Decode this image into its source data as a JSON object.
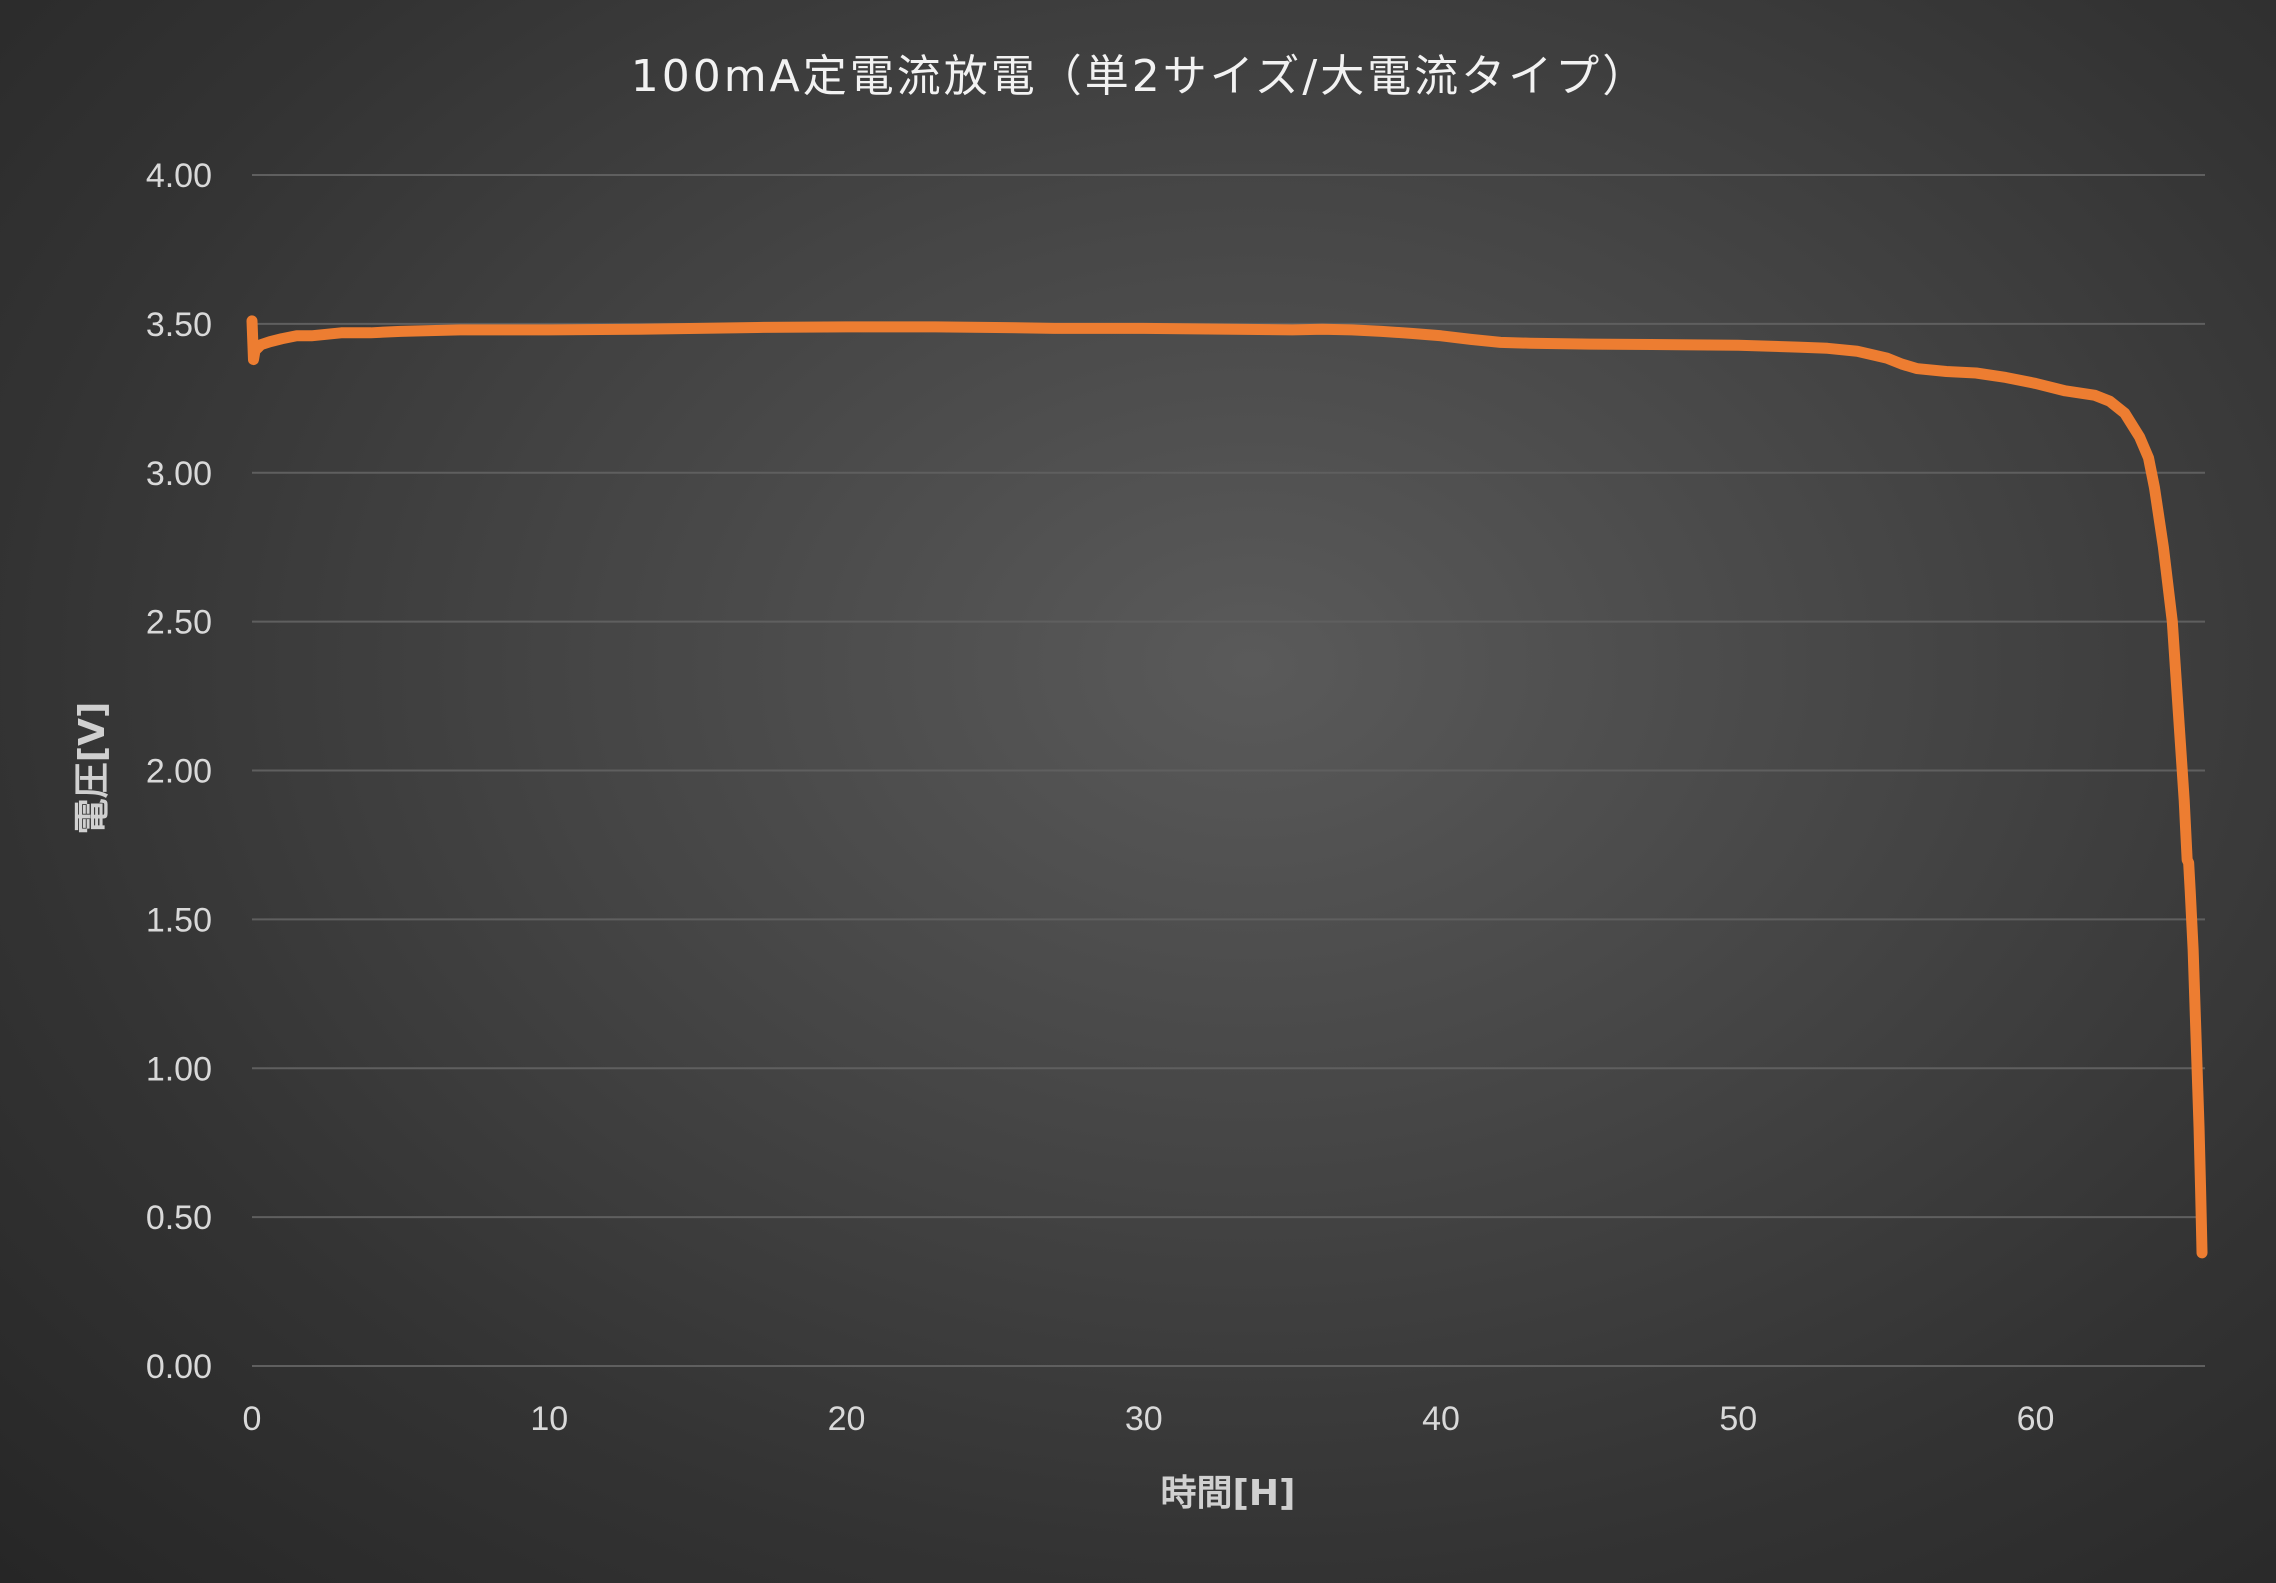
{
  "chart_data": {
    "type": "line",
    "title": "100mA定電流放電（単2サイズ/大電流タイプ）",
    "xlabel": "時間[H]",
    "ylabel": "電圧[V]",
    "xlim": [
      0,
      65.7
    ],
    "ylim": [
      0,
      4
    ],
    "x_ticks": [
      "0",
      "10",
      "20",
      "30",
      "40",
      "50",
      "60"
    ],
    "y_ticks": [
      "0.00",
      "0.50",
      "1.00",
      "1.50",
      "2.00",
      "2.50",
      "3.00",
      "3.50",
      "4.00"
    ],
    "grid": true,
    "legend": "none",
    "colors": {
      "series": "#ed7d31",
      "grid": "#5f5f5f",
      "text": "#d9d9d9"
    },
    "series": [
      {
        "x": [
          0,
          0.05,
          0.1,
          0.3,
          0.6,
          1,
          1.5,
          2,
          3,
          4,
          5,
          7,
          10,
          13,
          15,
          17,
          20,
          23,
          25,
          27,
          30,
          33,
          35,
          36,
          37,
          38,
          39,
          40,
          41,
          42,
          43,
          45,
          48,
          50,
          52,
          53,
          54,
          55,
          55.5,
          56,
          57,
          58,
          59,
          60,
          61,
          62,
          62.5,
          63,
          63.5,
          63.8,
          64,
          64.3,
          64.6,
          64.8,
          65,
          65.1,
          65.15,
          65.2,
          65.3,
          65.4,
          65.5,
          65.55,
          65.6
        ],
        "y": [
          3.51,
          3.38,
          3.41,
          3.43,
          3.44,
          3.45,
          3.46,
          3.46,
          3.47,
          3.47,
          3.475,
          3.48,
          3.48,
          3.482,
          3.485,
          3.488,
          3.49,
          3.49,
          3.488,
          3.485,
          3.485,
          3.482,
          3.48,
          3.482,
          3.48,
          3.475,
          3.468,
          3.46,
          3.448,
          3.438,
          3.435,
          3.432,
          3.43,
          3.428,
          3.422,
          3.418,
          3.408,
          3.385,
          3.365,
          3.35,
          3.34,
          3.335,
          3.32,
          3.3,
          3.275,
          3.26,
          3.24,
          3.2,
          3.12,
          3.05,
          2.95,
          2.75,
          2.5,
          2.2,
          1.9,
          1.7,
          1.69,
          1.6,
          1.4,
          1.1,
          0.8,
          0.6,
          0.38
        ]
      }
    ]
  }
}
